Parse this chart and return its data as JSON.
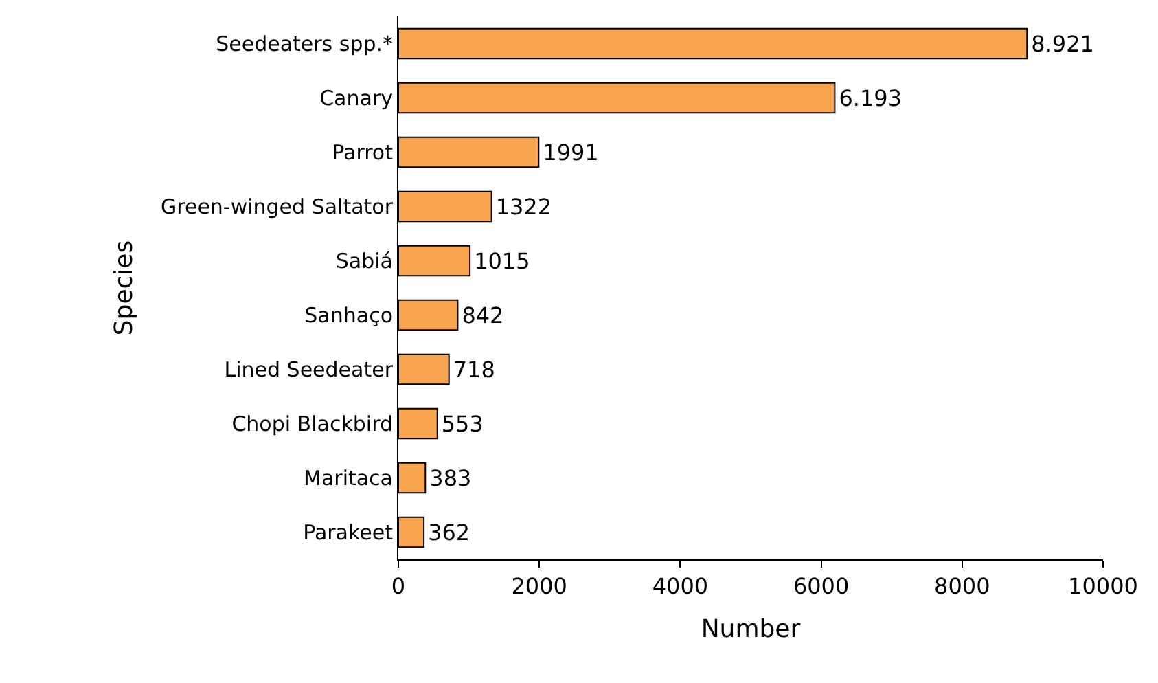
{
  "chart_data": {
    "type": "bar",
    "orientation": "horizontal",
    "xlabel": "Number",
    "ylabel": "Species",
    "categories": [
      "Seedeaters spp.*",
      "Canary",
      "Parrot",
      "Green-winged Saltator",
      "Sabiá",
      "Sanhaço",
      "Lined Seedeater",
      "Chopi Blackbird",
      "Maritaca",
      "Parakeet"
    ],
    "values": [
      8921,
      6193,
      1991,
      1322,
      1015,
      842,
      718,
      553,
      383,
      362
    ],
    "value_labels": [
      "8.921",
      "6.193",
      "1991",
      "1322",
      "1015",
      "842",
      "718",
      "553",
      "383",
      "362"
    ],
    "color": "#f9a550",
    "xlim": [
      0,
      10000
    ],
    "xticks": [
      0,
      2000,
      4000,
      6000,
      8000,
      10000
    ]
  }
}
